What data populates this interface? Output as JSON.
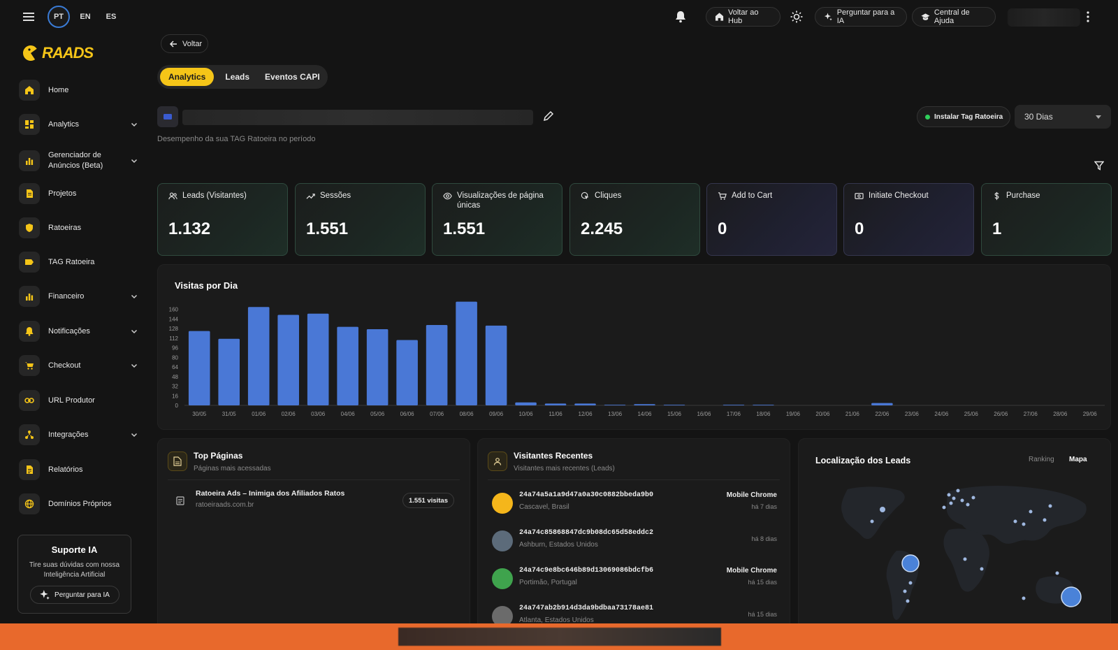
{
  "topbar": {
    "langs": [
      "PT",
      "EN",
      "ES"
    ],
    "hub_label": "Voltar ao Hub",
    "ia_label": "Perguntar para a IA",
    "help_label": "Central de Ajuda"
  },
  "brand": {
    "logo_text": "RAADS"
  },
  "sidebar": {
    "items": [
      {
        "label": "Home",
        "icon": "home-icon"
      },
      {
        "label": "Analytics",
        "icon": "grid-icon"
      },
      {
        "label": "Gerenciador de Anúncios (Beta)",
        "icon": "bar-chart-icon"
      },
      {
        "label": "Projetos",
        "icon": "document-icon"
      },
      {
        "label": "Ratoeiras",
        "icon": "shield-icon"
      },
      {
        "label": "TAG Ratoeira",
        "icon": "tag-icon"
      },
      {
        "label": "Financeiro",
        "icon": "bar-chart-icon"
      },
      {
        "label": "Notificações",
        "icon": "bell-icon"
      },
      {
        "label": "Checkout",
        "icon": "cart-icon"
      },
      {
        "label": "URL Produtor",
        "icon": "link-icon"
      },
      {
        "label": "Integrações",
        "icon": "integrations-icon"
      },
      {
        "label": "Relatórios",
        "icon": "report-icon"
      },
      {
        "label": "Domínios Próprios",
        "icon": "globe-icon"
      }
    ],
    "support": {
      "title": "Suporte IA",
      "text": "Tire suas dúvidas com nossa Inteligência Artificial",
      "button": "Perguntar para IA"
    }
  },
  "page": {
    "back_label": "Voltar",
    "tabs": [
      "Analytics",
      "Leads",
      "Eventos CAPI"
    ],
    "subtitle": "Desempenho da sua TAG Ratoeira no período",
    "install_tag": "Instalar Tag Ratoeira",
    "period": "30 Dias"
  },
  "stats": [
    {
      "label": "Leads (Visitantes)",
      "value": "1.132",
      "icon": "users-icon"
    },
    {
      "label": "Sessões",
      "value": "1.551",
      "icon": "trend-icon"
    },
    {
      "label": "Visualizações de página únicas",
      "value": "1.551",
      "icon": "eye-icon"
    },
    {
      "label": "Cliques",
      "value": "2.245",
      "icon": "click-icon"
    },
    {
      "label": "Add to Cart",
      "value": "0",
      "icon": "cart-icon"
    },
    {
      "label": "Initiate Checkout",
      "value": "0",
      "icon": "money-icon"
    },
    {
      "label": "Purchase",
      "value": "1",
      "icon": "dollar-icon"
    }
  ],
  "chart_data": {
    "type": "bar",
    "title": "Visitas por Dia",
    "categories": [
      "30/05",
      "31/05",
      "01/06",
      "02/06",
      "03/06",
      "04/06",
      "05/06",
      "06/06",
      "07/06",
      "08/06",
      "09/06",
      "10/06",
      "11/06",
      "12/06",
      "13/06",
      "14/06",
      "15/06",
      "16/06",
      "17/06",
      "18/06",
      "19/06",
      "20/06",
      "21/06",
      "22/06",
      "23/06",
      "24/06",
      "25/06",
      "26/06",
      "27/06",
      "28/06",
      "29/06"
    ],
    "values": [
      124,
      111,
      164,
      151,
      153,
      131,
      127,
      109,
      134,
      173,
      133,
      5,
      3,
      3,
      1,
      2,
      1,
      0,
      1,
      1,
      0,
      0,
      0,
      4,
      0,
      0,
      0,
      0,
      0,
      0,
      0
    ],
    "yticks": [
      0,
      16,
      32,
      48,
      64,
      80,
      96,
      112,
      128,
      144,
      160
    ],
    "ylim": [
      0,
      176
    ],
    "color": "#4a78d6"
  },
  "top_pages": {
    "title": "Top Páginas",
    "subtitle": "Páginas mais acessadas",
    "items": [
      {
        "title": "Ratoeira Ads – Inimiga dos Afiliados Ratos",
        "url": "ratoeiraads.com.br",
        "visits": "1.551 visitas"
      }
    ]
  },
  "recent": {
    "title": "Visitantes Recentes",
    "subtitle": "Visitantes mais recentes (Leads)",
    "items": [
      {
        "id": "24a74a5a1a9d47a0a30c0882bbeda9b0",
        "location": "Cascavel, Brasil",
        "device": "Mobile Chrome",
        "time": "há 7 dias",
        "color": "#f5b61b"
      },
      {
        "id": "24a74c85868847dc9b08dc65d58eddc2",
        "location": "Ashburn, Estados Unidos",
        "device": "",
        "time": "há 8 dias",
        "color": "#5c6b7a"
      },
      {
        "id": "24a74c9e8bc646b89d13069086bdcfb6",
        "location": "Portimão, Portugal",
        "device": "Mobile Chrome",
        "time": "há 15 dias",
        "color": "#3fa34d"
      },
      {
        "id": "24a747ab2b914d3da9bdbaa73178ae81",
        "location": "Atlanta, Estados Unidos",
        "device": "",
        "time": "há 15 dias",
        "color": "#6b6b6b"
      }
    ]
  },
  "location": {
    "title": "Localização dos Leads",
    "tabs": [
      "Ranking",
      "Mapa"
    ]
  },
  "colors": {
    "accent": "#f5c518",
    "bar": "#4a78d6",
    "bottom_bar": "#e8692c"
  }
}
